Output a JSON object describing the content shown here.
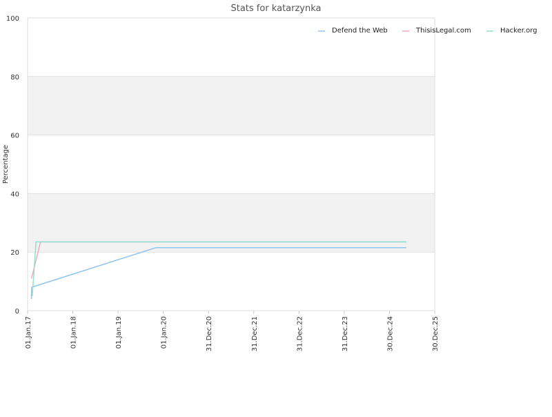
{
  "chart_data": {
    "type": "line",
    "title": "Stats for katarzynka",
    "xlabel": "",
    "ylabel": "Percentage",
    "ylim": [
      0,
      100
    ],
    "yticks": [
      0,
      20,
      40,
      60,
      80,
      100
    ],
    "xlim": [
      "2017-01-01",
      "2025-12-30"
    ],
    "xticks": [
      {
        "date": "2017-01-01",
        "label": "01.Jan.17"
      },
      {
        "date": "2018-01-01",
        "label": "01.Jan.18"
      },
      {
        "date": "2019-01-01",
        "label": "01.Jan.19"
      },
      {
        "date": "2020-01-01",
        "label": "01.Jan.20"
      },
      {
        "date": "2020-12-31",
        "label": "31.Dec.20"
      },
      {
        "date": "2021-12-31",
        "label": "31.Dec.21"
      },
      {
        "date": "2022-12-31",
        "label": "31.Dec.22"
      },
      {
        "date": "2023-12-31",
        "label": "31.Dec.23"
      },
      {
        "date": "2024-12-30",
        "label": "30.Dec.24"
      },
      {
        "date": "2025-12-30",
        "label": "30.Dec.25"
      }
    ],
    "legend_position": "top-right",
    "bands": "alternating horizontal bands",
    "series": [
      {
        "name": "Defend the Web",
        "color": "#8fc3ea",
        "points": [
          {
            "x": "2017-02-01",
            "y": 4
          },
          {
            "x": "2017-02-02",
            "y": 8
          },
          {
            "x": "2019-11-01",
            "y": 21.5
          },
          {
            "x": "2025-05-15",
            "y": 21.5
          }
        ]
      },
      {
        "name": "ThisisLegal.com",
        "color": "#f0a9c0",
        "points": [
          {
            "x": "2017-02-01",
            "y": 11
          },
          {
            "x": "2017-04-15",
            "y": 23.5
          },
          {
            "x": "2025-05-15",
            "y": 23.5
          }
        ]
      },
      {
        "name": "Hacker.org",
        "color": "#8fe0cc",
        "points": [
          {
            "x": "2017-02-08",
            "y": 5
          },
          {
            "x": "2017-03-10",
            "y": 23.5
          },
          {
            "x": "2025-05-15",
            "y": 23.5
          }
        ]
      }
    ]
  }
}
